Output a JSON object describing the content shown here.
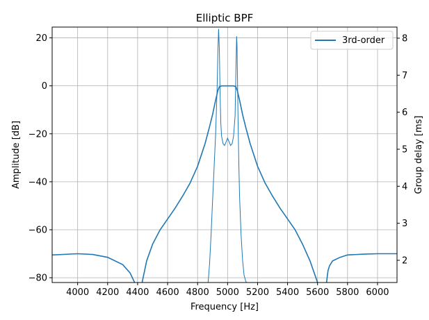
{
  "chart_data": {
    "type": "line",
    "title": "Elliptic BPF",
    "xlabel": "Frequency [Hz]",
    "ylabel": "Amplitude [dB]",
    "y2label": "Group delay [ms]",
    "xlim": [
      3830,
      6130
    ],
    "ylim": [
      -82,
      24.5
    ],
    "y2lim": [
      1.4,
      8.3
    ],
    "xticks": [
      4000,
      4200,
      4400,
      4600,
      4800,
      5000,
      5200,
      5400,
      5600,
      5800,
      6000
    ],
    "yticks": [
      20,
      0,
      -20,
      -40,
      -60,
      -80
    ],
    "y2ticks": [
      2,
      3,
      4,
      5,
      6,
      7,
      8
    ],
    "grid": true,
    "legend": {
      "placement": "top-right",
      "entries": [
        "3rd-order"
      ]
    },
    "color": "#1f77b4",
    "series": [
      {
        "name": "3rd-order",
        "axis": "left",
        "x": [
          3830,
          4000,
          4100,
          4200,
          4300,
          4350,
          4380,
          4400,
          4410,
          4420,
          4430,
          4460,
          4500,
          4550,
          4600,
          4650,
          4700,
          4750,
          4800,
          4850,
          4880,
          4900,
          4920,
          4935,
          4945,
          4960,
          5000,
          5040,
          5055,
          5065,
          5080,
          5100,
          5120,
          5150,
          5200,
          5250,
          5300,
          5350,
          5400,
          5450,
          5500,
          5550,
          5600,
          5620,
          5640,
          5650,
          5660,
          5670,
          5680,
          5700,
          5750,
          5800,
          5900,
          6000,
          6130
        ],
        "y": [
          -70.5,
          -70,
          -70.3,
          -71.5,
          -74.5,
          -78,
          -82,
          -90,
          -100,
          -90,
          -82,
          -73,
          -66,
          -60,
          -55.5,
          -51,
          -46,
          -40.5,
          -33.5,
          -24,
          -17,
          -12,
          -6,
          -2,
          -0.4,
          0,
          0,
          0,
          -0.4,
          -2,
          -6,
          -12,
          -17,
          -24,
          -33.5,
          -40.5,
          -46,
          -51,
          -55.5,
          -60,
          -66,
          -73,
          -82,
          -88,
          -100,
          -90,
          -82,
          -77,
          -75,
          -73,
          -71.5,
          -70.5,
          -70.2,
          -70,
          -70
        ]
      },
      {
        "name": "Group delay",
        "axis": "right",
        "x": [
          4870,
          4880,
          4890,
          4900,
          4910,
          4920,
          4930,
          4935,
          4940,
          4945,
          4950,
          4955,
          4960,
          4970,
          4980,
          4990,
          5000,
          5010,
          5020,
          5030,
          5040,
          5050,
          5055,
          5060,
          5063,
          5066,
          5070,
          5075,
          5080,
          5090,
          5100,
          5110,
          5120,
          5125
        ],
        "y": [
          1.4,
          1.9,
          2.7,
          3.6,
          4.5,
          5.4,
          6.6,
          7.6,
          8.25,
          7.7,
          6.5,
          5.7,
          5.35,
          5.15,
          5.1,
          5.2,
          5.3,
          5.2,
          5.1,
          5.15,
          5.35,
          5.9,
          7.0,
          8.05,
          7.8,
          7.0,
          5.8,
          4.6,
          3.7,
          2.7,
          2.0,
          1.6,
          1.45,
          1.4
        ]
      }
    ]
  }
}
